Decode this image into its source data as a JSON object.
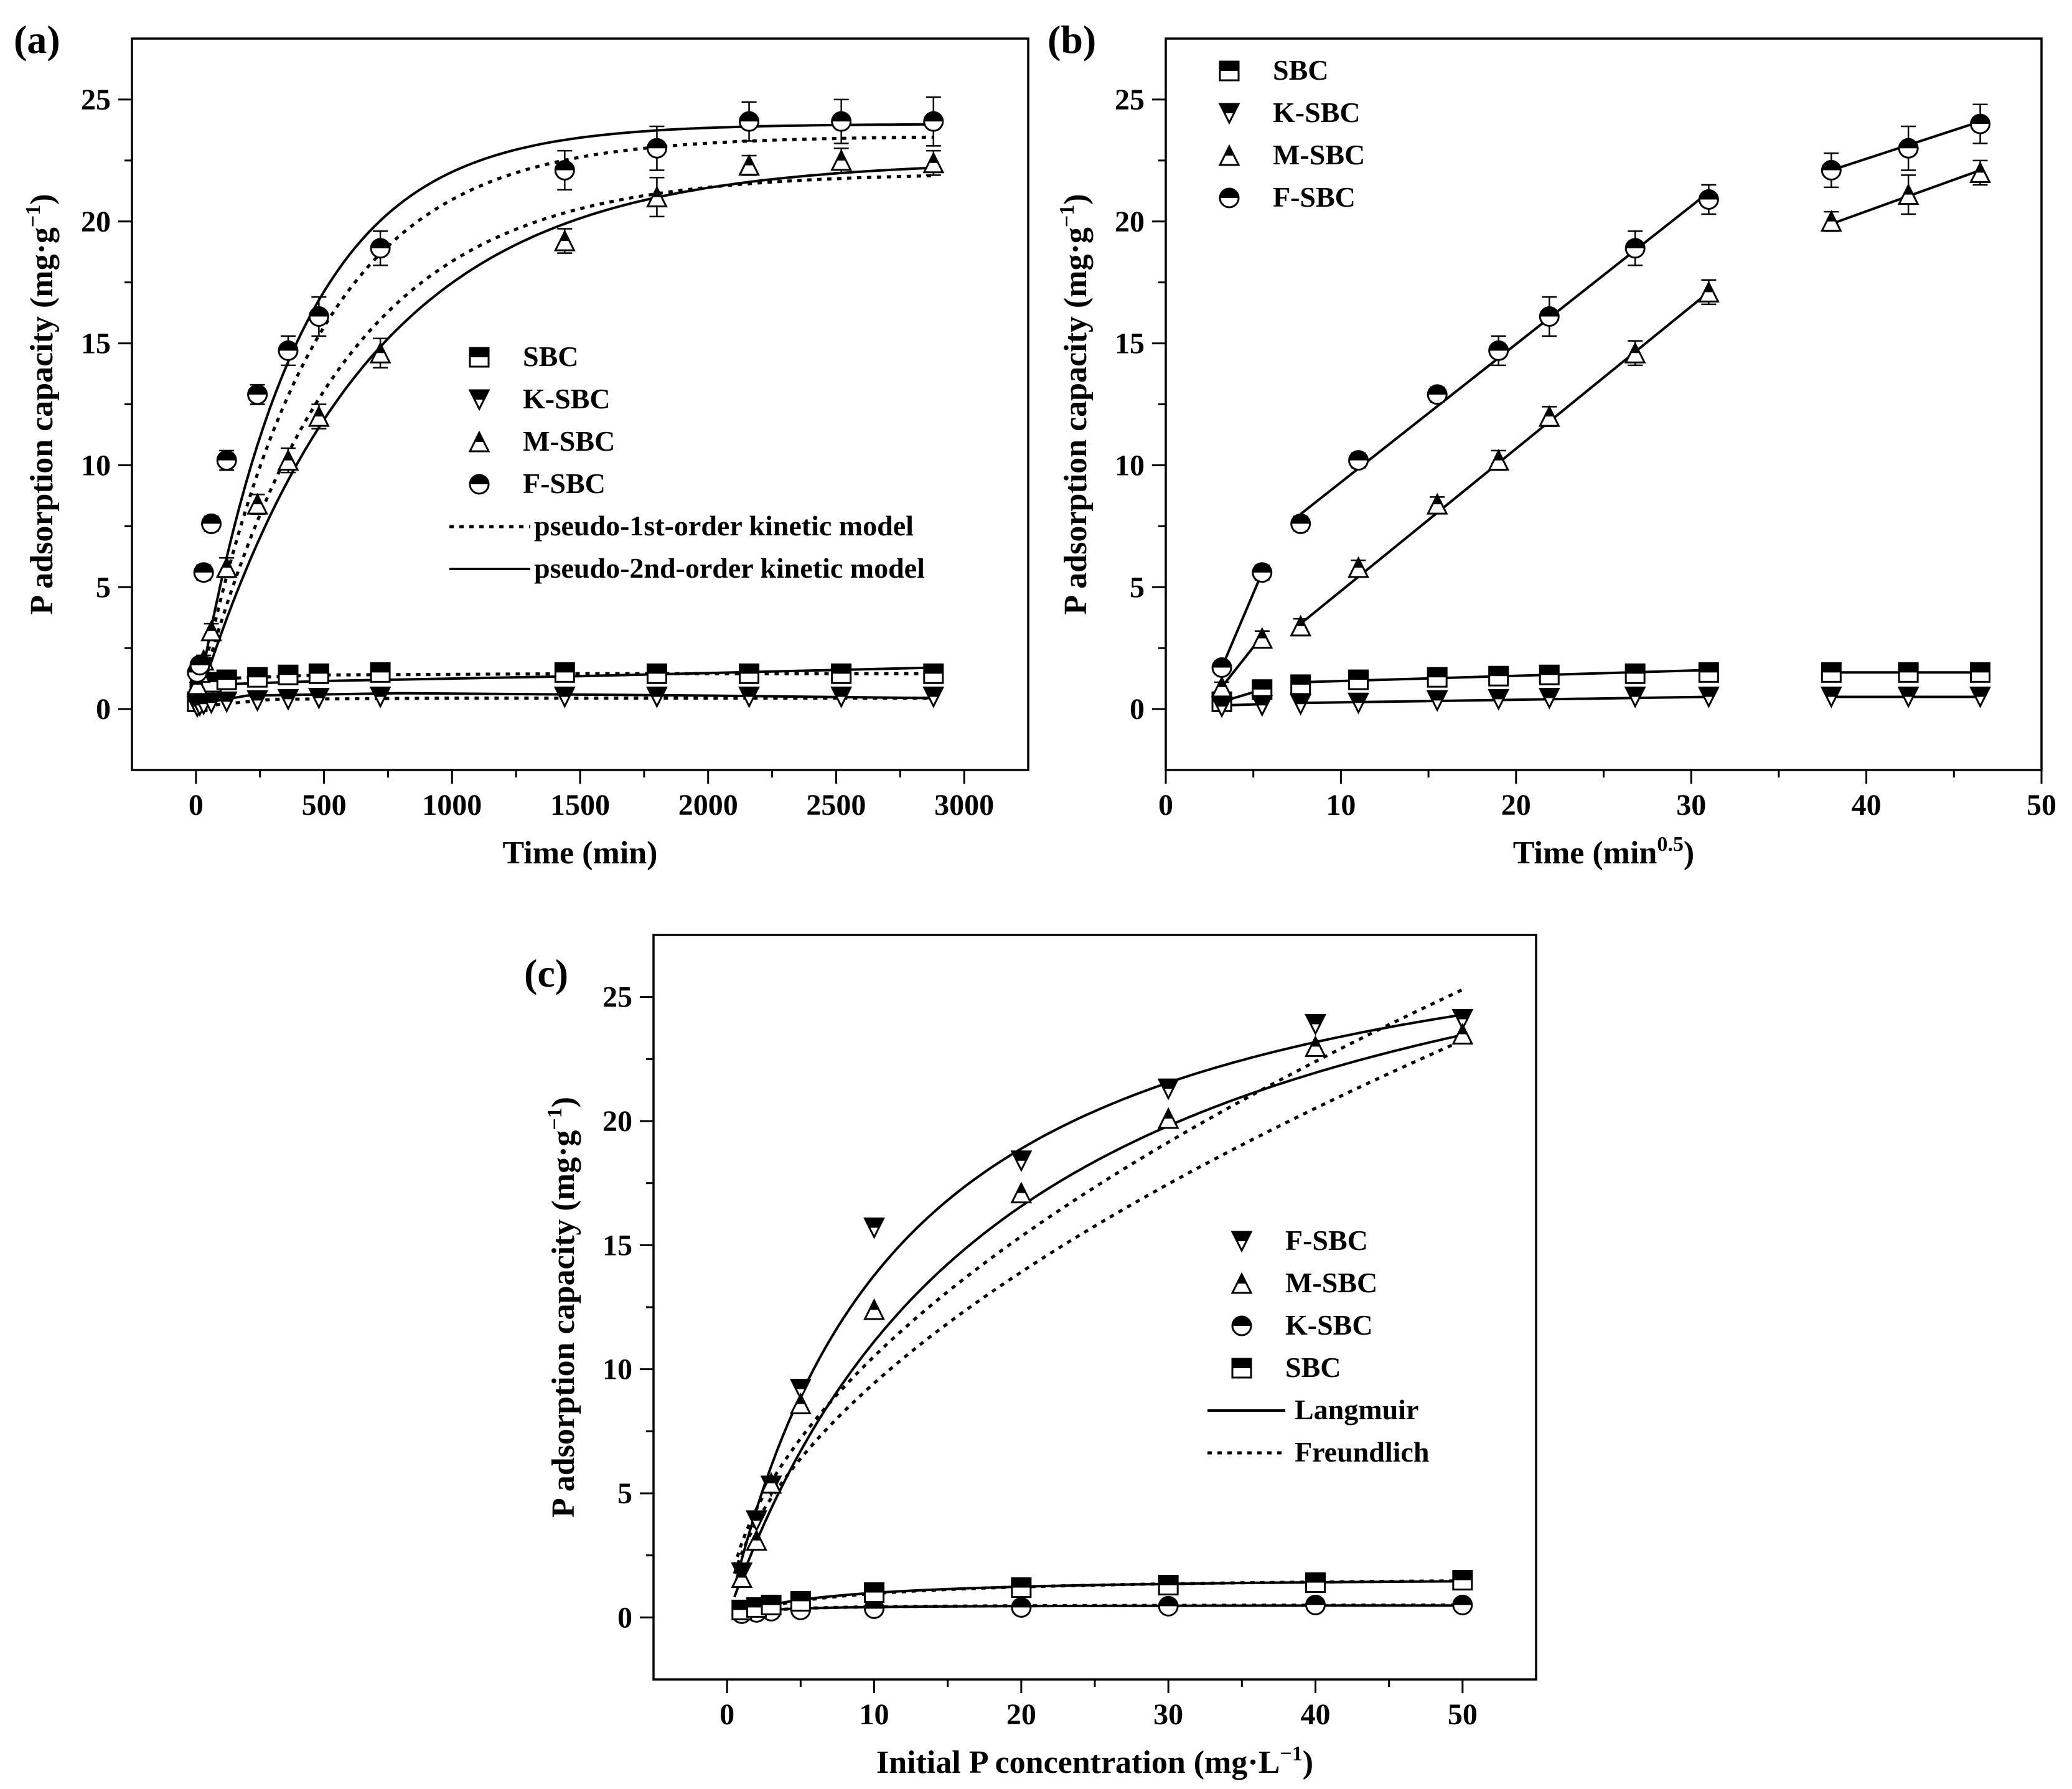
{
  "chart_data": [
    {
      "panel": "(a)",
      "type": "scatter",
      "xlabel": "Time (min)",
      "ylabel": "P adsorption capacity (mg·g",
      "ylabel_sup": "−1",
      "ylabel_tail": ")",
      "xlim": [
        -250,
        3250
      ],
      "ylim": [
        -2.5,
        27.5
      ],
      "xticks": [
        0,
        500,
        1000,
        1500,
        2000,
        2500,
        3000
      ],
      "yticks": [
        0,
        5,
        10,
        15,
        20,
        25
      ],
      "series": [
        {
          "name": "SBC",
          "marker": "square",
          "x": [
            5,
            15,
            30,
            60,
            120,
            240,
            360,
            480,
            720,
            1440,
            1800,
            2160,
            2520,
            2880
          ],
          "y": [
            0.3,
            0.7,
            0.9,
            1.1,
            1.2,
            1.3,
            1.4,
            1.45,
            1.5,
            1.5,
            1.45,
            1.45,
            1.45,
            1.45
          ]
        },
        {
          "name": "K-SBC",
          "marker": "triangle-down",
          "x": [
            5,
            15,
            30,
            60,
            120,
            240,
            360,
            480,
            720,
            1440,
            1800,
            2160,
            2520,
            2880
          ],
          "y": [
            0.1,
            0.15,
            0.2,
            0.25,
            0.3,
            0.35,
            0.4,
            0.45,
            0.5,
            0.5,
            0.5,
            0.5,
            0.5,
            0.5
          ]
        },
        {
          "name": "M-SBC",
          "marker": "triangle-up",
          "x": [
            5,
            15,
            30,
            60,
            120,
            240,
            360,
            480,
            720,
            1440,
            1800,
            2160,
            2520,
            2880
          ],
          "y": [
            1.0,
            1.5,
            2.0,
            3.2,
            5.8,
            8.4,
            10.2,
            12.0,
            14.6,
            19.2,
            21.0,
            22.3,
            22.5,
            22.4
          ],
          "err": [
            0.2,
            0.2,
            0.2,
            0.3,
            0.4,
            0.4,
            0.5,
            0.5,
            0.6,
            0.5,
            0.8,
            0.4,
            0.5,
            0.5
          ]
        },
        {
          "name": "F-SBC",
          "marker": "circle-half",
          "x": [
            5,
            15,
            30,
            60,
            120,
            240,
            360,
            480,
            720,
            1440,
            1800,
            2160,
            2520,
            2880
          ],
          "y": [
            1.5,
            1.8,
            5.6,
            7.6,
            10.2,
            12.9,
            14.7,
            16.1,
            18.9,
            22.1,
            23.0,
            24.1,
            24.1,
            24.1
          ],
          "err": [
            0.2,
            0.2,
            0.3,
            0.3,
            0.4,
            0.4,
            0.6,
            0.8,
            0.7,
            0.8,
            0.9,
            0.8,
            0.9,
            1.0
          ]
        }
      ],
      "fits": [
        {
          "series": "F-SBC",
          "style": "solid",
          "qe": 24.0,
          "k": 0.0025,
          "kind": "exp"
        },
        {
          "series": "F-SBC",
          "style": "dotted",
          "qe": 23.5,
          "k": 0.0022,
          "kind": "exp"
        },
        {
          "series": "M-SBC",
          "style": "solid",
          "qe": 22.5,
          "k": 0.0015,
          "kind": "exp"
        },
        {
          "series": "M-SBC",
          "style": "dotted",
          "qe": 22.0,
          "k": 0.0018,
          "kind": "exp"
        },
        {
          "series": "SBC",
          "style": "solid",
          "points": [
            [
              0,
              0.3
            ],
            [
              60,
              1.0
            ],
            [
              500,
              1.15
            ],
            [
              1500,
              1.35
            ],
            [
              2880,
              1.7
            ]
          ]
        },
        {
          "series": "SBC",
          "style": "dotted",
          "points": [
            [
              0,
              0.3
            ],
            [
              100,
              1.25
            ],
            [
              500,
              1.4
            ],
            [
              1500,
              1.45
            ],
            [
              2880,
              1.45
            ]
          ]
        },
        {
          "series": "K-SBC",
          "style": "solid",
          "points": [
            [
              0,
              0.2
            ],
            [
              200,
              0.55
            ],
            [
              800,
              0.65
            ],
            [
              2000,
              0.55
            ],
            [
              2880,
              0.45
            ]
          ]
        },
        {
          "series": "K-SBC",
          "style": "dotted",
          "points": [
            [
              0,
              0.1
            ],
            [
              300,
              0.4
            ],
            [
              1000,
              0.45
            ],
            [
              2880,
              0.45
            ]
          ]
        }
      ],
      "legend": {
        "items": [
          "SBC",
          "K-SBC",
          "M-SBC",
          "F-SBC"
        ],
        "lines": [
          "pseudo-1st-order kinetic model",
          "pseudo-2nd-order kinetic model"
        ],
        "placement": "center-right"
      }
    },
    {
      "panel": "(b)",
      "type": "scatter",
      "xlabel": "Time (min",
      "xlabel_sup": "0.5",
      "xlabel_tail": ")",
      "ylabel": "P adsorption capacity (mg·g",
      "ylabel_sup": "−1",
      "ylabel_tail": ")",
      "xlim": [
        0,
        50
      ],
      "ylim": [
        -2.5,
        27.5
      ],
      "xticks": [
        0,
        10,
        20,
        30,
        40,
        50
      ],
      "yticks": [
        0,
        5,
        10,
        15,
        20,
        25
      ],
      "series": [
        {
          "name": "SBC",
          "marker": "square",
          "x": [
            3.2,
            5.5,
            7.7,
            11.0,
            15.5,
            19.0,
            21.9,
            26.8,
            31.0,
            38.0,
            42.4,
            46.5
          ],
          "y": [
            0.3,
            0.8,
            1.0,
            1.2,
            1.3,
            1.35,
            1.4,
            1.45,
            1.5,
            1.5,
            1.5,
            1.5
          ]
        },
        {
          "name": "K-SBC",
          "marker": "triangle-down",
          "x": [
            3.2,
            5.5,
            7.7,
            11.0,
            15.5,
            19.0,
            21.9,
            26.8,
            31.0,
            38.0,
            42.4,
            46.5
          ],
          "y": [
            0.1,
            0.15,
            0.2,
            0.25,
            0.35,
            0.4,
            0.45,
            0.5,
            0.5,
            0.5,
            0.5,
            0.5
          ]
        },
        {
          "name": "M-SBC",
          "marker": "triangle-up",
          "x": [
            3.2,
            5.5,
            7.7,
            11.0,
            15.5,
            19.0,
            21.9,
            26.8,
            31.0,
            38.0,
            42.4,
            46.5
          ],
          "y": [
            0.9,
            2.9,
            3.4,
            5.8,
            8.4,
            10.2,
            12.0,
            14.6,
            17.1,
            20.0,
            21.1,
            22.0
          ],
          "err": [
            0.2,
            0.3,
            0.3,
            0.3,
            0.3,
            0.4,
            0.4,
            0.5,
            0.5,
            0.4,
            0.8,
            0.5
          ]
        },
        {
          "name": "F-SBC",
          "marker": "circle-half",
          "x": [
            3.2,
            5.5,
            7.7,
            11.0,
            15.5,
            19.0,
            21.9,
            26.8,
            31.0,
            38.0,
            42.4,
            46.5
          ],
          "y": [
            1.7,
            5.6,
            7.6,
            10.2,
            12.9,
            14.7,
            16.1,
            18.9,
            20.9,
            22.1,
            23.0,
            24.0
          ],
          "err": [
            0.2,
            0.3,
            0.3,
            0.3,
            0.3,
            0.6,
            0.8,
            0.7,
            0.6,
            0.7,
            0.9,
            0.8
          ]
        }
      ],
      "fits": [
        {
          "series": "F-SBC",
          "points": [
            [
              3.2,
              1.7
            ],
            [
              5.5,
              5.6
            ]
          ]
        },
        {
          "series": "F-SBC",
          "points": [
            [
              7.7,
              8.0
            ],
            [
              31.0,
              21.2
            ]
          ]
        },
        {
          "series": "F-SBC",
          "points": [
            [
              38.0,
              22.1
            ],
            [
              46.5,
              24.1
            ]
          ]
        },
        {
          "series": "M-SBC",
          "points": [
            [
              3.2,
              0.9
            ],
            [
              5.5,
              3.0
            ]
          ]
        },
        {
          "series": "M-SBC",
          "points": [
            [
              7.7,
              3.5
            ],
            [
              31.0,
              17.1
            ]
          ]
        },
        {
          "series": "M-SBC",
          "points": [
            [
              38.0,
              19.9
            ],
            [
              46.5,
              22.1
            ]
          ]
        },
        {
          "series": "SBC",
          "points": [
            [
              3.2,
              0.3
            ],
            [
              5.5,
              0.8
            ]
          ]
        },
        {
          "series": "SBC",
          "points": [
            [
              7.7,
              1.1
            ],
            [
              31.0,
              1.6
            ]
          ]
        },
        {
          "series": "SBC",
          "points": [
            [
              38.0,
              1.5
            ],
            [
              46.5,
              1.5
            ]
          ]
        },
        {
          "series": "K-SBC",
          "points": [
            [
              3.2,
              0.15
            ],
            [
              5.5,
              0.2
            ]
          ]
        },
        {
          "series": "K-SBC",
          "points": [
            [
              7.7,
              0.25
            ],
            [
              31.0,
              0.5
            ]
          ]
        },
        {
          "series": "K-SBC",
          "points": [
            [
              38.0,
              0.5
            ],
            [
              46.5,
              0.5
            ]
          ]
        }
      ],
      "legend": {
        "items": [
          "SBC",
          "K-SBC",
          "M-SBC",
          "F-SBC"
        ],
        "lines": [],
        "placement": "top-left"
      }
    },
    {
      "panel": "(c)",
      "type": "scatter",
      "xlabel": "Initial P concentration (mg·L",
      "xlabel_sup": "−1",
      "xlabel_tail": ")",
      "ylabel": "P adsorption capacity (mg·g",
      "ylabel_sup": "−1",
      "ylabel_tail": ")",
      "xlim": [
        -5,
        55
      ],
      "ylim": [
        -2.5,
        27.5
      ],
      "xticks": [
        0,
        10,
        20,
        30,
        40,
        50
      ],
      "yticks": [
        0,
        5,
        10,
        15,
        20,
        25
      ],
      "series": [
        {
          "name": "F-SBC",
          "marker": "triangle-down",
          "x": [
            1,
            2,
            3,
            5,
            10,
            20,
            30,
            40,
            50
          ],
          "y": [
            1.8,
            3.9,
            5.3,
            9.2,
            15.7,
            18.4,
            21.3,
            23.9,
            24.1
          ]
        },
        {
          "name": "M-SBC",
          "marker": "triangle-up",
          "x": [
            1,
            2,
            3,
            5,
            10,
            20,
            30,
            40,
            50
          ],
          "y": [
            1.6,
            3.1,
            5.4,
            8.6,
            12.4,
            17.1,
            20.1,
            23.0,
            23.5
          ]
        },
        {
          "name": "K-SBC",
          "marker": "circle-half",
          "x": [
            1,
            2,
            3,
            5,
            10,
            20,
            30,
            40,
            50
          ],
          "y": [
            0.15,
            0.2,
            0.25,
            0.3,
            0.35,
            0.4,
            0.45,
            0.5,
            0.5
          ]
        },
        {
          "name": "SBC",
          "marker": "square",
          "x": [
            1,
            2,
            3,
            5,
            10,
            20,
            30,
            40,
            50
          ],
          "y": [
            0.3,
            0.4,
            0.5,
            0.65,
            1.0,
            1.2,
            1.3,
            1.4,
            1.5
          ]
        }
      ],
      "fits": [
        {
          "series": "F-SBC",
          "style": "solid",
          "kind": "langmuir",
          "qm": 30.0,
          "kL": 0.085
        },
        {
          "series": "F-SBC",
          "style": "dotted",
          "kind": "freundlich",
          "kF": 3.0,
          "n": 0.545
        },
        {
          "series": "M-SBC",
          "style": "solid",
          "kind": "langmuir",
          "qm": 32.5,
          "kL": 0.052
        },
        {
          "series": "M-SBC",
          "style": "dotted",
          "kind": "freundlich",
          "kF": 2.6,
          "n": 0.56
        },
        {
          "series": "SBC",
          "style": "solid",
          "kind": "langmuir",
          "qm": 1.65,
          "kL": 0.15
        },
        {
          "series": "SBC",
          "style": "dotted",
          "kind": "langmuir",
          "qm": 1.7,
          "kL": 0.13
        },
        {
          "series": "K-SBC",
          "style": "solid",
          "kind": "langmuir",
          "qm": 0.5,
          "kL": 0.5
        },
        {
          "series": "K-SBC",
          "style": "dotted",
          "kind": "langmuir",
          "qm": 0.52,
          "kL": 0.45
        }
      ],
      "legend": {
        "items": [
          "F-SBC",
          "M-SBC",
          "K-SBC",
          "SBC"
        ],
        "lines": [
          "Langmuir",
          "Freundlich"
        ],
        "placement": "center-right"
      }
    }
  ]
}
